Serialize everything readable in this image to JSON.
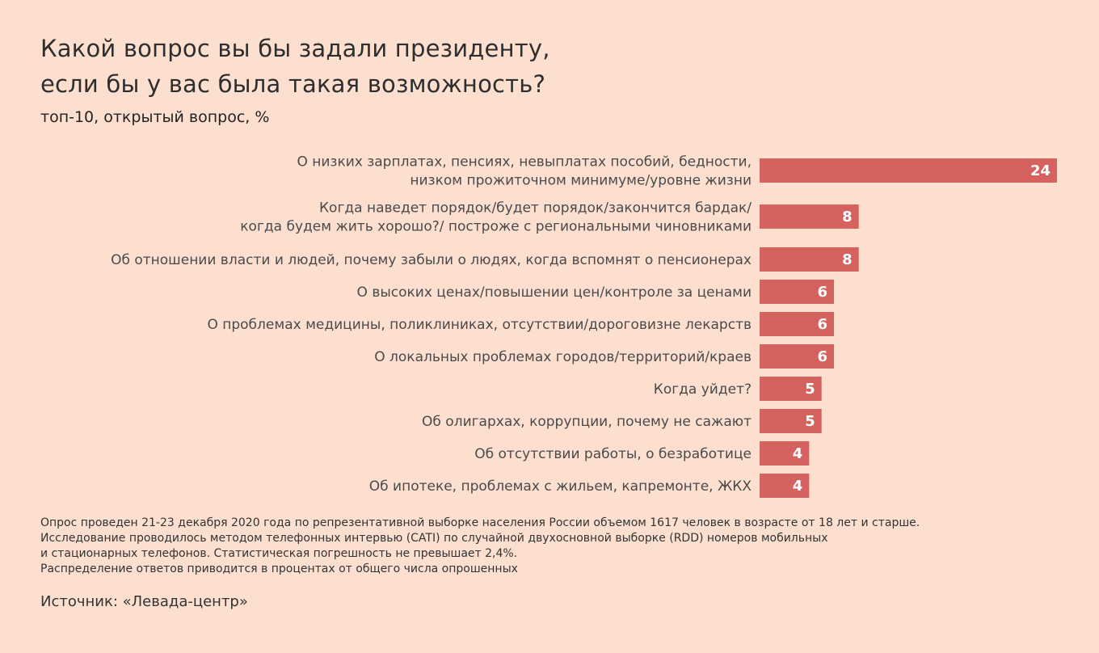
{
  "title_lines": [
    "Какой вопрос вы бы задали президенту,",
    "если бы у вас была такая возможность?"
  ],
  "subtitle": "топ-10, открытый вопрос, %",
  "colors": {
    "background": "#fddfd0",
    "bar": "#d6625f",
    "value_text": "#ffffff"
  },
  "chart_data": {
    "type": "bar",
    "orientation": "horizontal",
    "categories": [
      [
        "О низких зарплатах, пенсиях, невыплатах пособий, бедности,",
        "низком прожиточном минимуме/уровне жизни"
      ],
      [
        "Когда наведет порядок/будет порядок/закончится бардак/",
        "когда будем жить хорошо?/ построже с региональными чиновниками"
      ],
      [
        "Об отношении власти и людей, почему забыли о людях, когда вспомнят о пенсионерах"
      ],
      [
        "О высоких ценах/повышении цен/контроле за ценами"
      ],
      [
        "О проблемах медицины, поликлиниках, отсутствии/дороговизне лекарств"
      ],
      [
        "О локальных проблемах городов/территорий/краев"
      ],
      [
        "Когда уйдет?"
      ],
      [
        "Об олигархах, коррупции, почему не сажают"
      ],
      [
        "Об отсутствии работы, о безработице"
      ],
      [
        "Об ипотеке, проблемах с жильем, капремонте, ЖКХ"
      ]
    ],
    "values": [
      24,
      8,
      8,
      6,
      6,
      6,
      5,
      5,
      4,
      4
    ],
    "data_labels": [
      "24",
      "8",
      "8",
      "6",
      "6",
      "6",
      "5",
      "5",
      "4",
      "4"
    ],
    "xlim": [
      0,
      24
    ],
    "grid": false,
    "legend": "none"
  },
  "footnote_lines": [
    "Опрос проведен 21-23 декабря 2020 года по репрезентативной выборке населения России объемом 1617 человек в возрасте от 18 лет и старше.",
    "Исследование проводилось методом телефонных интервью (CATI) по случайной двухосновной выборке (RDD) номеров мобильных",
    "и стационарных телефонов. Статистическая погрешность не превышает 2,4%.",
    "Распределение ответов приводится в процентах от общего числа опрошенных"
  ],
  "source": "Источник: «Левада-центр»"
}
